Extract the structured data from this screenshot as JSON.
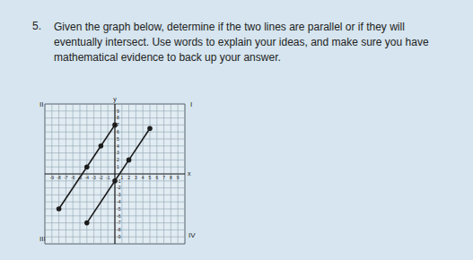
{
  "number": "5.",
  "question": "Given the graph below, determine if the two lines are parallel or if they will eventually intersect. Use words to explain your ideas, and make sure you have mathematical evidence to back up your answer.",
  "chart_data": {
    "type": "line",
    "x_label": "x",
    "y_label": "y",
    "xlim": [
      -10,
      10
    ],
    "ylim": [
      -10,
      10
    ],
    "xticks": [
      -9,
      -8,
      -7,
      -6,
      -5,
      -4,
      -3,
      -2,
      -1,
      1,
      2,
      3,
      4,
      5,
      6,
      7,
      8,
      9
    ],
    "yticks": [
      -9,
      -8,
      -7,
      -6,
      -5,
      -4,
      -3,
      -2,
      -1,
      1,
      2,
      3,
      4,
      5,
      6,
      7,
      8,
      9
    ],
    "grid": true,
    "quadrant_labels": [
      "I",
      "II",
      "III",
      "IV"
    ],
    "marker": "circle",
    "series": [
      {
        "color": "#1c1c1c",
        "x": [
          -8,
          -4,
          -2,
          0
        ],
        "values": [
          -5,
          1,
          4,
          7
        ]
      },
      {
        "color": "#1c1c1c",
        "x": [
          -4,
          0,
          2,
          5
        ],
        "values": [
          -7,
          -1,
          2,
          6.5
        ]
      }
    ]
  }
}
